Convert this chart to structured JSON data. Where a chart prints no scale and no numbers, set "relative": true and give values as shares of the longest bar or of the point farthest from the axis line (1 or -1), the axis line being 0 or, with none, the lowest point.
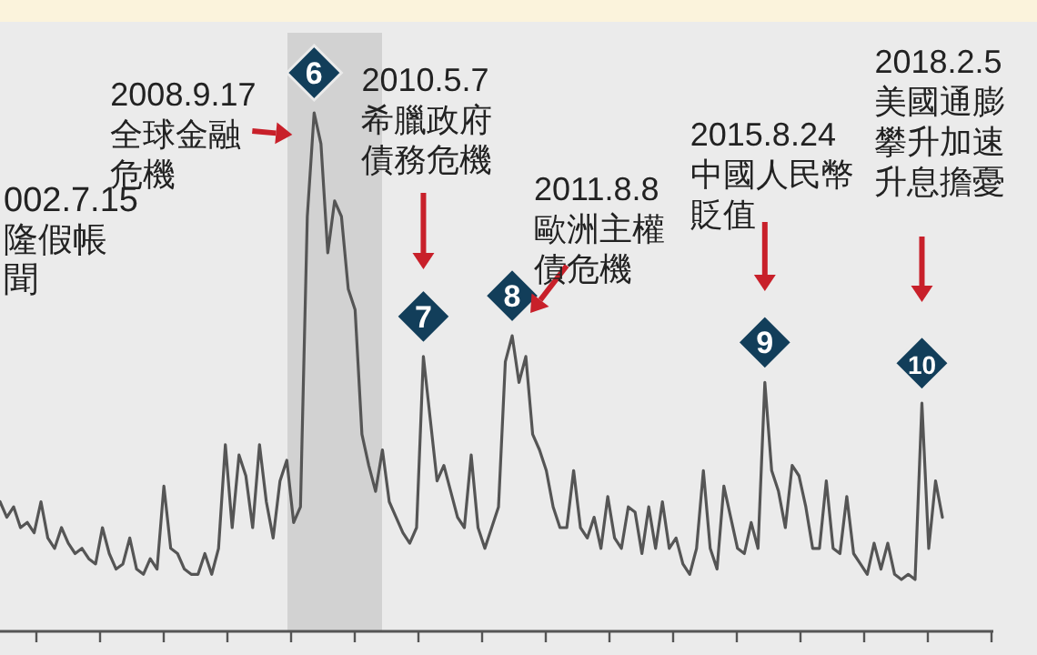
{
  "chart_data": {
    "type": "line",
    "relative": true,
    "color": "#555555",
    "line_style": "solid",
    "categories": [
      null,
      null,
      null,
      null,
      null,
      null,
      null,
      null,
      null,
      null,
      null,
      null,
      null,
      null,
      null,
      null,
      null,
      null,
      null,
      null,
      null,
      null,
      null,
      null,
      null,
      null,
      null,
      null,
      null,
      null,
      null,
      null,
      null,
      null,
      null,
      null,
      null,
      null,
      null,
      null,
      null,
      null,
      null,
      null,
      null,
      null,
      null,
      null,
      null,
      null,
      null,
      null,
      null,
      null,
      null,
      null,
      null,
      null,
      null,
      null,
      null,
      null,
      null,
      null,
      null,
      null,
      null,
      null,
      null,
      null,
      null,
      null,
      null,
      null,
      null,
      null,
      null,
      null,
      null,
      null,
      null,
      null,
      null,
      null,
      null,
      null,
      null,
      null,
      null,
      null,
      null,
      null,
      null,
      null,
      null,
      null,
      null,
      null,
      null,
      null,
      null,
      null,
      null,
      null,
      null,
      null,
      null,
      null,
      null,
      null,
      null,
      null,
      null,
      null,
      null,
      null,
      null,
      null,
      null,
      null,
      null,
      null,
      null,
      null,
      null,
      null,
      null,
      null,
      null,
      null,
      null,
      null,
      null,
      null,
      null,
      null,
      null,
      null,
      null
    ],
    "values": [
      0.25,
      0.22,
      0.24,
      0.2,
      0.21,
      0.19,
      0.25,
      0.18,
      0.16,
      0.2,
      0.17,
      0.15,
      0.16,
      0.14,
      0.13,
      0.2,
      0.15,
      0.12,
      0.13,
      0.18,
      0.12,
      0.11,
      0.14,
      0.12,
      0.28,
      0.16,
      0.15,
      0.12,
      0.11,
      0.11,
      0.15,
      0.11,
      0.16,
      0.36,
      0.2,
      0.34,
      0.3,
      0.2,
      0.36,
      0.25,
      0.18,
      0.29,
      0.33,
      0.21,
      0.24,
      0.8,
      1,
      0.94,
      0.73,
      0.83,
      0.8,
      0.66,
      0.62,
      0.38,
      0.32,
      0.27,
      0.35,
      0.25,
      0.22,
      0.19,
      0.17,
      0.2,
      0.53,
      0.41,
      0.29,
      0.32,
      0.27,
      0.22,
      0.2,
      0.34,
      0.2,
      0.16,
      0.2,
      0.24,
      0.52,
      0.57,
      0.48,
      0.53,
      0.38,
      0.35,
      0.31,
      0.24,
      0.2,
      0.2,
      0.31,
      0.2,
      0.18,
      0.22,
      0.16,
      0.26,
      0.18,
      0.16,
      0.24,
      0.23,
      0.15,
      0.24,
      0.16,
      0.25,
      0.16,
      0.18,
      0.13,
      0.11,
      0.16,
      0.31,
      0.16,
      0.12,
      0.28,
      0.22,
      0.16,
      0.15,
      0.21,
      0.16,
      0.48,
      0.31,
      0.27,
      0.2,
      0.32,
      0.3,
      0.24,
      0.16,
      0.16,
      0.29,
      0.16,
      0.15,
      0.26,
      0.15,
      0.13,
      0.11,
      0.17,
      0.12,
      0.17,
      0.11,
      0.1,
      0.11,
      0.1,
      0.44,
      0.16,
      0.29,
      0.22
    ],
    "annotations": [
      "002.7.15\n隆假帳聞",
      "6",
      "2008.9.17\n全球金融危機",
      "7",
      "2010.5.7\n希臘政府債務危機",
      "8",
      "2011.8.8\n歐洲主權債危機",
      "9",
      "2015.8.24\n中國人民幣貶值",
      "10",
      "2018.2.5\n美國通膨攀升加速升息擔憂"
    ]
  }
}
